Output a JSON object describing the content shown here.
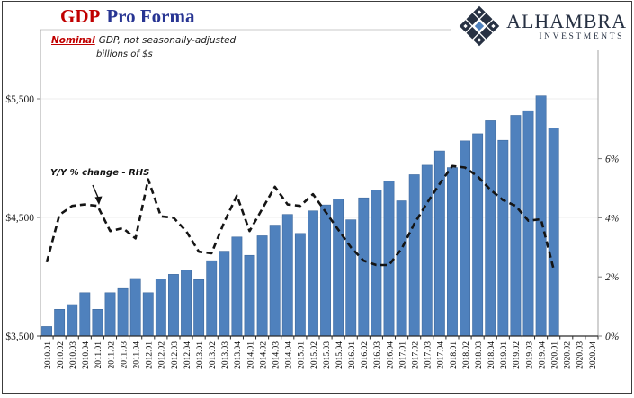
{
  "header": {
    "title_accent": "GDP",
    "title_rest": "Pro Forma"
  },
  "subtitle": {
    "accent": "Nominal",
    "rest": "GDP, not seasonally-adjusted",
    "line2": "billions of $s"
  },
  "logo": {
    "name": "ALHAMBRA",
    "sub": "INVESTMENTS"
  },
  "annotation": {
    "label": "Y/Y % change - RHS"
  },
  "colors": {
    "bar_fill": "#4f81bd",
    "bar_stroke": "#3f6a9e",
    "line_color": "#141414",
    "grid_color": "#ececec",
    "side_axis_color": "#a3a3a3",
    "bottom_axis_color": "#2b2b2b",
    "title_accent": "#c00000",
    "title_rest": "#283593"
  },
  "chart_data": {
    "type": "bar",
    "title": "GDP Pro Forma",
    "subtitle": "Nominal GDP, not seasonally-adjusted, billions of $s",
    "legend_position": "none",
    "grid": "horizontal, light, at $4,500 and $5,500",
    "categories": [
      "2010.01",
      "2010.02",
      "2010.03",
      "2010.04",
      "2011.01",
      "2011.02",
      "2011.03",
      "2011.04",
      "2012.01",
      "2012.02",
      "2012.03",
      "2012.04",
      "2013.01",
      "2013.02",
      "2013.03",
      "2013.04",
      "2014.01",
      "2014.02",
      "2014.03",
      "2014.04",
      "2015.01",
      "2015.02",
      "2015.03",
      "2015.04",
      "2016.01",
      "2016.02",
      "2016.03",
      "2016.04",
      "2017.01",
      "2017.02",
      "2017.03",
      "2017.04",
      "2018.01",
      "2018.02",
      "2018.03",
      "2018.04",
      "2019.01",
      "2019.02",
      "2019.03",
      "2019.04",
      "2020.01",
      "2020.02",
      "2020.03",
      "2020.04"
    ],
    "series": [
      {
        "name": "Nominal GDP, billions of $s",
        "type": "bar",
        "axis": "left",
        "values": [
          3580,
          3725,
          3765,
          3865,
          3725,
          3865,
          3900,
          3985,
          3865,
          3980,
          4020,
          4055,
          3975,
          4135,
          4215,
          4335,
          4180,
          4345,
          4435,
          4525,
          4365,
          4555,
          4605,
          4655,
          4480,
          4665,
          4730,
          4805,
          4640,
          4860,
          4940,
          5060,
          4920,
          5145,
          5205,
          5315,
          5150,
          5360,
          5400,
          5525,
          5255
        ]
      },
      {
        "name": "Y/Y % change - RHS",
        "type": "line",
        "style": "dashed",
        "axis": "right",
        "values": [
          2.5,
          4.1,
          4.4,
          4.45,
          4.4,
          3.55,
          3.65,
          3.3,
          5.3,
          4.05,
          4.0,
          3.55,
          2.85,
          2.8,
          3.85,
          4.75,
          3.55,
          4.3,
          5.05,
          4.45,
          4.4,
          4.8,
          4.2,
          3.6,
          3.0,
          2.55,
          2.4,
          2.4,
          2.95,
          3.8,
          4.5,
          5.15,
          5.75,
          5.7,
          5.4,
          4.95,
          4.6,
          4.4,
          3.9,
          3.95,
          2.25
        ]
      }
    ],
    "left_axis": {
      "ticks": [
        3500,
        4500,
        5500
      ],
      "tick_labels": [
        "$3,500",
        "$4,500",
        "$5,500"
      ],
      "min": 3500,
      "max": 6060
    },
    "right_axis": {
      "ticks": [
        0,
        2,
        4,
        6
      ],
      "tick_labels": [
        "0%",
        "2%",
        "4%",
        "6%"
      ],
      "min": 0,
      "max": 10.4
    }
  }
}
